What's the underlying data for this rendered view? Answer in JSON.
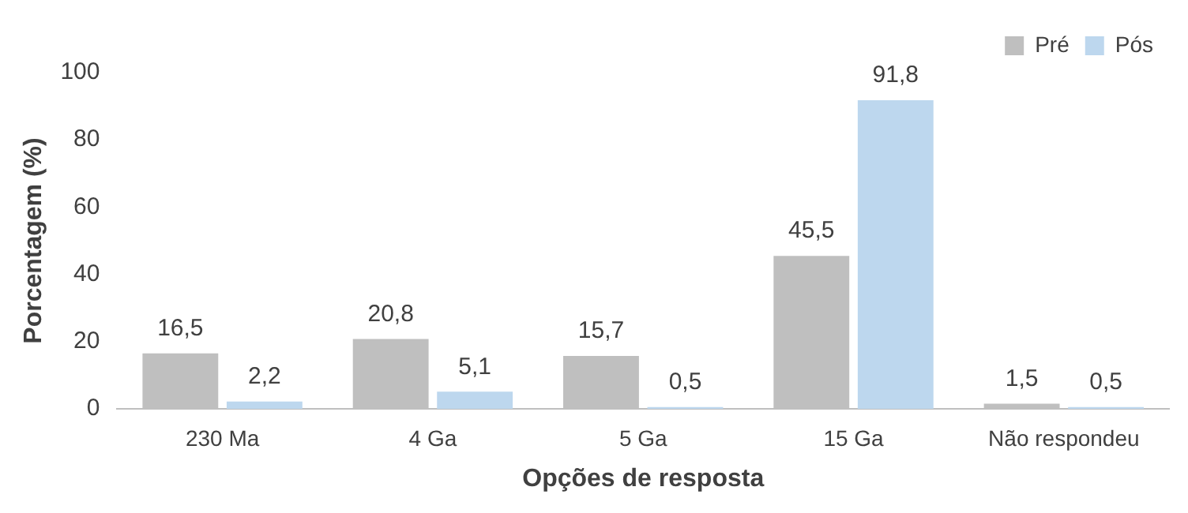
{
  "chart_data": {
    "type": "bar",
    "xlabel": "Opções de resposta",
    "ylabel": "Porcentagem (%)",
    "categories": [
      "230 Ma",
      "4 Ga",
      "5 Ga",
      "15 Ga",
      "Não respondeu"
    ],
    "series": [
      {
        "name": "Pré",
        "color": "#bfbfbf",
        "values": [
          16.5,
          20.8,
          15.7,
          45.5,
          1.5
        ],
        "value_labels": [
          "16,5",
          "20,8",
          "15,7",
          "45,5",
          "1,5"
        ]
      },
      {
        "name": "Pós",
        "color": "#bdd7ee",
        "values": [
          2.2,
          5.1,
          0.5,
          91.8,
          0.5
        ],
        "value_labels": [
          "2,2",
          "5,1",
          "0,5",
          "91,8",
          "0,5"
        ]
      }
    ],
    "ylim": [
      0,
      100
    ],
    "yticks": [
      0,
      20,
      40,
      60,
      80,
      100
    ],
    "grid": false,
    "legend": "top right"
  }
}
